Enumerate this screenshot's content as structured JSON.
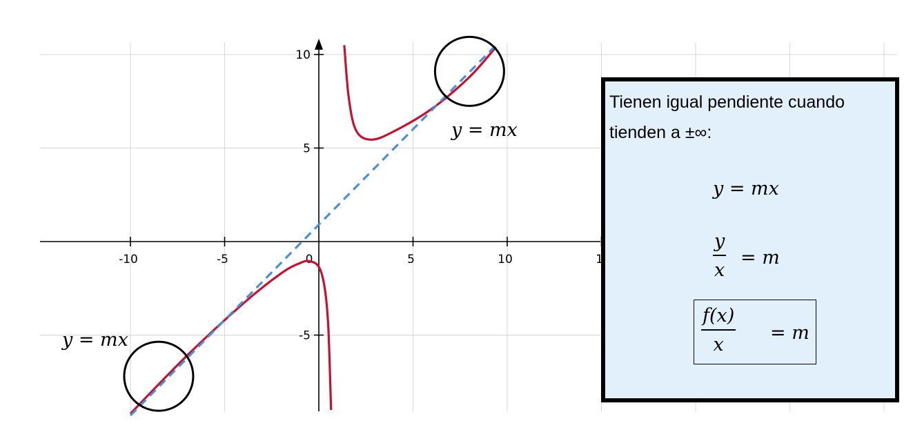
{
  "chart_data": {
    "type": "line",
    "title": "",
    "xlabel": "",
    "ylabel": "",
    "xlim": [
      -15,
      30
    ],
    "ylim": [
      -9,
      10.5
    ],
    "grid": true,
    "x_ticks": [
      "-10",
      "-5",
      "0",
      "5",
      "10",
      "1"
    ],
    "y_ticks": [
      "10",
      "5",
      "-5"
    ],
    "series": [
      {
        "style": "solid",
        "color": "#c8102e",
        "points": [
          [
            -10,
            -9.2
          ],
          [
            -7,
            -6.1
          ],
          [
            -4,
            -3.3
          ],
          [
            -2,
            -1.7
          ],
          [
            -1,
            -1.15
          ],
          [
            -0.5,
            -1.05
          ],
          [
            0,
            -1.35
          ],
          [
            0.3,
            -2.4
          ],
          [
            0.5,
            -4.5
          ],
          [
            0.65,
            -9
          ]
        ]
      },
      {
        "style": "solid",
        "color": "#c8102e",
        "points": [
          [
            1.35,
            10.5
          ],
          [
            1.6,
            7.6
          ],
          [
            2,
            5.9
          ],
          [
            2.8,
            5.45
          ],
          [
            4,
            5.9
          ],
          [
            6,
            7.1
          ],
          [
            8,
            8.8
          ],
          [
            9.4,
            10.4
          ]
        ]
      },
      {
        "style": "dashed",
        "color": "#4a8fd8",
        "points": [
          [
            -10,
            -9.3
          ],
          [
            9.5,
            10.6
          ]
        ]
      }
    ],
    "circles": [
      {
        "x": 8,
        "y": 9.1
      },
      {
        "x": -8.5,
        "y": -7.2
      }
    ],
    "annotations": [
      "y = mx",
      "y = mx"
    ]
  },
  "info_box": {
    "intro": "Tienen igual pendiente cuando tienden a ±∞:",
    "eq1": "y =  mx",
    "eq2_num": "y",
    "eq2_den": "x",
    "eq2_rest": "= m",
    "eq3_num": "f(x)",
    "eq3_den": "x",
    "eq3_rest": "= m"
  },
  "colors": {
    "curve": "#c8102e",
    "asymptote": "#4a8fd8",
    "box_fill": "#e2f0fc"
  }
}
